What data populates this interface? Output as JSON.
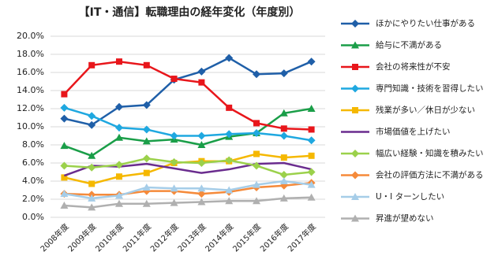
{
  "chart_data": {
    "type": "line",
    "title": "【IT・通信】転職理由の経年変化（年度別）",
    "categories": [
      "2008年度",
      "2009年度",
      "2010年度",
      "2011年度",
      "2012年度",
      "2013年度",
      "2014年度",
      "2015年度",
      "2016年度",
      "2017年度"
    ],
    "ylim": [
      0,
      20
    ],
    "yticks": [
      {
        "value": 0,
        "label": "0.0%"
      },
      {
        "value": 2,
        "label": "2.0%"
      },
      {
        "value": 4,
        "label": "4.0%"
      },
      {
        "value": 6,
        "label": "6.0%"
      },
      {
        "value": 8,
        "label": "8.0%"
      },
      {
        "value": 10,
        "label": "10.0%"
      },
      {
        "value": 12,
        "label": "12.0%"
      },
      {
        "value": 14,
        "label": "14.0%"
      },
      {
        "value": 16,
        "label": "16.0%"
      },
      {
        "value": 18,
        "label": "18.0%"
      },
      {
        "value": 20,
        "label": "20.0%"
      }
    ],
    "grid": true,
    "legend": "right",
    "series": [
      {
        "name": "ほかにやりたい仕事がある",
        "color": "#1f5fa8",
        "marker": "diamond",
        "values": [
          10.9,
          10.2,
          12.2,
          12.4,
          15.2,
          16.1,
          17.6,
          15.8,
          15.9,
          17.2
        ]
      },
      {
        "name": "給与に不満がある",
        "color": "#1a9e48",
        "marker": "triangle",
        "values": [
          7.9,
          6.8,
          8.8,
          8.4,
          8.6,
          8.0,
          8.9,
          9.3,
          11.5,
          12.0
        ]
      },
      {
        "name": "会社の将来性が不安",
        "color": "#e8161b",
        "marker": "square",
        "values": [
          13.6,
          16.8,
          17.2,
          16.8,
          15.3,
          14.9,
          12.1,
          10.4,
          9.8,
          9.7
        ]
      },
      {
        "name": "専門知識・技術を習得したい",
        "color": "#1fa8e0",
        "marker": "diamond",
        "values": [
          12.1,
          11.2,
          9.9,
          9.7,
          9.0,
          9.0,
          9.2,
          9.3,
          9.0,
          8.5
        ]
      },
      {
        "name": "残業が多い／休日が少ない",
        "color": "#f5b800",
        "marker": "square",
        "values": [
          4.4,
          3.7,
          4.5,
          4.9,
          6.0,
          6.2,
          6.2,
          7.0,
          6.6,
          6.8
        ]
      },
      {
        "name": "市場価値を上げたい",
        "color": "#6a2c8e",
        "marker": "none",
        "values": [
          4.6,
          5.7,
          5.6,
          5.9,
          5.4,
          4.9,
          5.3,
          5.9,
          6.0,
          5.3
        ]
      },
      {
        "name": "幅広い経験・知識を積みたい",
        "color": "#9bd14b",
        "marker": "diamond",
        "values": [
          5.7,
          5.5,
          5.8,
          6.5,
          6.1,
          6.0,
          6.3,
          5.7,
          4.7,
          5.0
        ]
      },
      {
        "name": "会社の評価方法に不満がある",
        "color": "#f58a3a",
        "marker": "diamond",
        "values": [
          2.6,
          2.5,
          2.5,
          2.9,
          2.9,
          2.6,
          2.8,
          3.3,
          3.5,
          3.8
        ]
      },
      {
        "name": "U・I ターンしたい",
        "color": "#a6cde8",
        "marker": "triangle",
        "values": [
          2.6,
          2.1,
          2.4,
          3.3,
          3.2,
          3.2,
          3.0,
          3.6,
          4.0,
          3.6
        ]
      },
      {
        "name": "昇進が望めない",
        "color": "#b0b0b0",
        "marker": "triangle",
        "values": [
          1.3,
          1.1,
          1.5,
          1.5,
          1.6,
          1.7,
          1.8,
          1.8,
          2.1,
          2.2
        ]
      }
    ]
  }
}
